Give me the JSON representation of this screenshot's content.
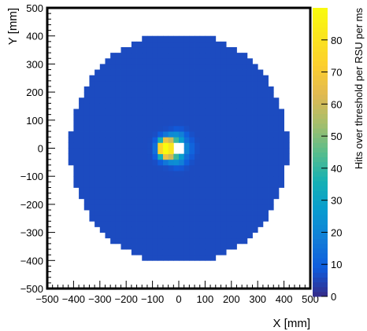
{
  "chart_data": {
    "type": "heatmap",
    "title": "",
    "xlabel": "X [mm]",
    "ylabel": "Y [mm]",
    "zlabel": "Hits over threshold per RSU per ms",
    "xlim": [
      -500,
      500
    ],
    "ylim": [
      -500,
      500
    ],
    "zlim": [
      0,
      90
    ],
    "x_ticks": [
      "−500",
      "−400",
      "−300",
      "−200",
      "−100",
      "0",
      "100",
      "200",
      "300",
      "400",
      "500"
    ],
    "y_ticks": [
      "500",
      "400",
      "300",
      "200",
      "100",
      "0",
      "−100",
      "−200",
      "−300",
      "−400",
      "−500"
    ],
    "z_ticks": [
      "80",
      "70",
      "60",
      "50",
      "40",
      "30",
      "20",
      "10",
      "0"
    ],
    "disk": {
      "outer_radius_mm": 415,
      "flat_edge_mm": 408,
      "inner_hole_mm": [
        -15,
        15,
        -15,
        15
      ],
      "pixel_mm": 20,
      "background_hits": 6
    },
    "hotspots": [
      {
        "x": -50,
        "y": 0,
        "value": 80
      },
      {
        "x": -55,
        "y": 15,
        "value": 55
      },
      {
        "x": -55,
        "y": -15,
        "value": 55
      },
      {
        "x": -30,
        "y": 25,
        "value": 40
      },
      {
        "x": -30,
        "y": -25,
        "value": 40
      },
      {
        "x": 0,
        "y": 35,
        "value": 25
      },
      {
        "x": 0,
        "y": -35,
        "value": 25
      },
      {
        "x": 25,
        "y": 0,
        "value": 18
      }
    ]
  }
}
